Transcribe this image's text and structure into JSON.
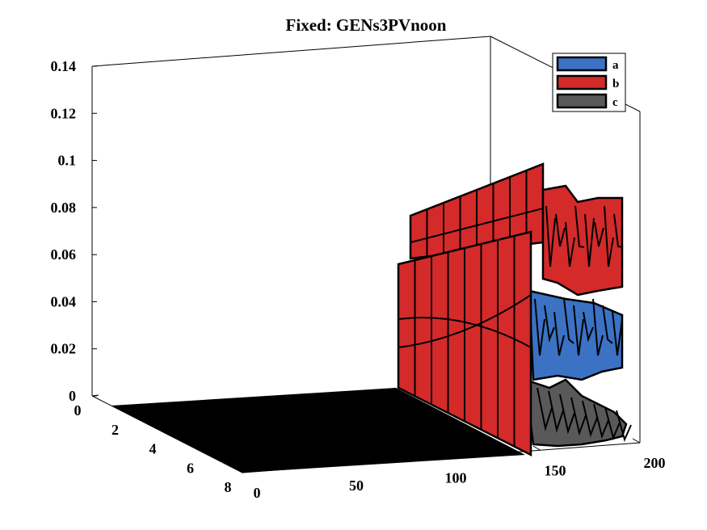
{
  "chart_data": {
    "type": "surface3d",
    "title": "Fixed: GENs3PVnoon",
    "xlabel": "",
    "ylabel": "",
    "zlabel": "",
    "x_ticks": [
      "0",
      "50",
      "100",
      "150",
      "200"
    ],
    "y_ticks": [
      "0",
      "2",
      "4",
      "6",
      "8"
    ],
    "z_ticks": [
      "0",
      "0.02",
      "0.04",
      "0.06",
      "0.08",
      "0.1",
      "0.12",
      "0.14"
    ],
    "xlim": [
      0,
      200
    ],
    "ylim": [
      0,
      8
    ],
    "zlim": [
      0,
      0.14
    ],
    "grid": false,
    "legend_position": "top-right",
    "series": [
      {
        "name": "a",
        "color": "#3b72c4",
        "max_value": 0.04
      },
      {
        "name": "b",
        "color": "#d42a2a",
        "max_value": 0.09
      },
      {
        "name": "c",
        "color": "#595959",
        "max_value": 0.01
      }
    ],
    "floor_color": "#000000",
    "surface_edge_color": "#000000",
    "nonzero_x_range": [
      120,
      200
    ]
  }
}
